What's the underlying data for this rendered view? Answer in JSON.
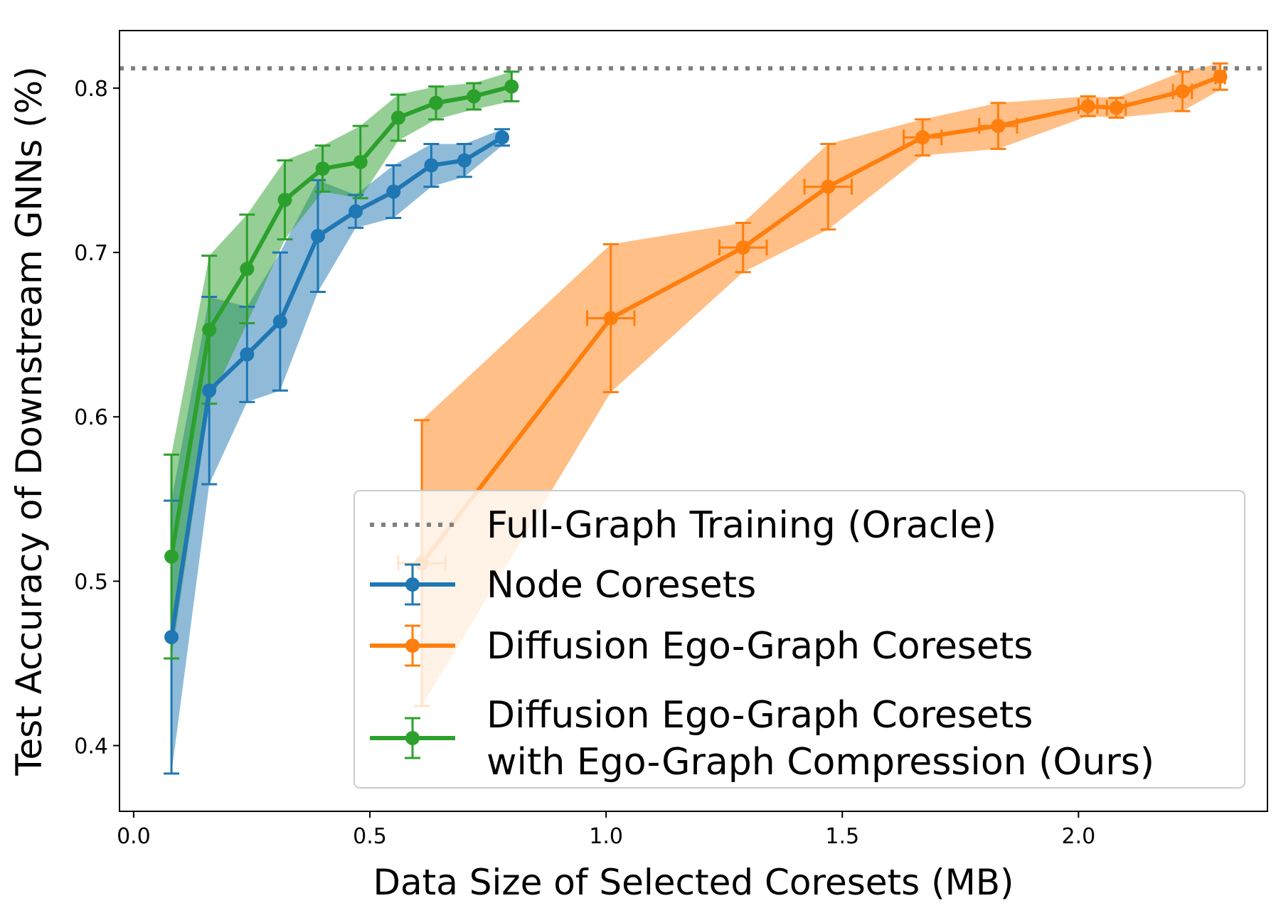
{
  "chart_data": {
    "type": "line",
    "title": "",
    "xlabel": "Data Size of Selected Coresets (MB)",
    "ylabel": "Test Accuracy of Downstream GNNs (%)",
    "xlim": [
      -0.03,
      2.4
    ],
    "ylim": [
      0.36,
      0.835
    ],
    "xticks": [
      {
        "value": 0.0,
        "label": "0.0"
      },
      {
        "value": 0.5,
        "label": "0.5"
      },
      {
        "value": 1.0,
        "label": "1.0"
      },
      {
        "value": 1.5,
        "label": "1.5"
      },
      {
        "value": 2.0,
        "label": "2.0"
      }
    ],
    "yticks": [
      {
        "value": 0.4,
        "label": "0.4"
      },
      {
        "value": 0.5,
        "label": "0.5"
      },
      {
        "value": 0.6,
        "label": "0.6"
      },
      {
        "value": 0.7,
        "label": "0.7"
      },
      {
        "value": 0.8,
        "label": "0.8"
      }
    ],
    "grid": false,
    "legend_position": "lower-right",
    "oracle": {
      "name": "Full-Graph Training (Oracle)",
      "value": 0.812,
      "color": "#7f7f7f"
    },
    "series": [
      {
        "name": "Node Coresets",
        "color": "#1f77b4",
        "x": [
          0.08,
          0.16,
          0.24,
          0.31,
          0.39,
          0.47,
          0.55,
          0.63,
          0.7,
          0.78
        ],
        "y": [
          0.466,
          0.616,
          0.638,
          0.658,
          0.71,
          0.725,
          0.737,
          0.753,
          0.756,
          0.77
        ],
        "yerr": [
          0.083,
          0.057,
          0.029,
          0.042,
          0.034,
          0.01,
          0.016,
          0.013,
          0.01,
          0.005
        ],
        "xerr": [
          0,
          0,
          0,
          0,
          0,
          0,
          0,
          0,
          0,
          0
        ]
      },
      {
        "name": "Diffusion Ego-Graph Coresets",
        "color": "#ff7f0e",
        "x": [
          0.61,
          1.01,
          1.29,
          1.47,
          1.67,
          1.83,
          2.02,
          2.08,
          2.22,
          2.3
        ],
        "y": [
          0.511,
          0.66,
          0.703,
          0.74,
          0.77,
          0.777,
          0.789,
          0.788,
          0.798,
          0.807
        ],
        "yerr": [
          0.087,
          0.045,
          0.015,
          0.026,
          0.011,
          0.014,
          0.006,
          0.006,
          0.012,
          0.008
        ],
        "xerr": [
          0.05,
          0.05,
          0.05,
          0.05,
          0.04,
          0.04,
          0.02,
          0.02,
          0.02,
          0.01
        ]
      },
      {
        "name": "Diffusion Ego-Graph Coresets\nwith Ego-Graph Compression (Ours)",
        "color": "#2ca02c",
        "x": [
          0.08,
          0.16,
          0.24,
          0.32,
          0.4,
          0.48,
          0.56,
          0.64,
          0.72,
          0.8
        ],
        "y": [
          0.515,
          0.653,
          0.69,
          0.732,
          0.751,
          0.755,
          0.782,
          0.791,
          0.795,
          0.801
        ],
        "yerr": [
          0.062,
          0.045,
          0.033,
          0.024,
          0.014,
          0.022,
          0.014,
          0.01,
          0.008,
          0.009
        ],
        "xerr": [
          0,
          0,
          0,
          0,
          0,
          0,
          0,
          0,
          0,
          0
        ]
      }
    ]
  }
}
